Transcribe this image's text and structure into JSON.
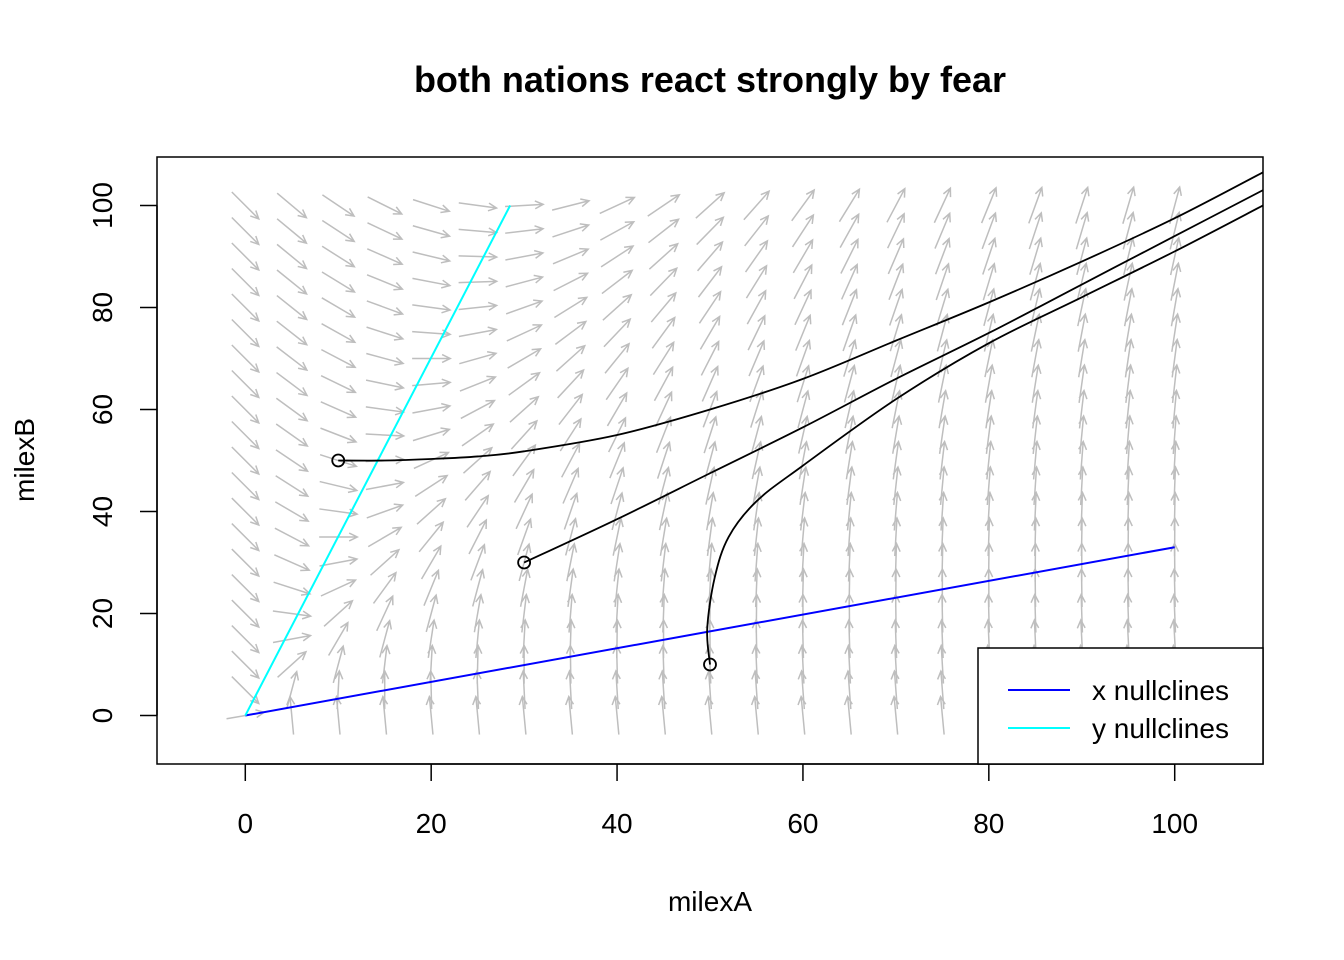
{
  "chart_data": {
    "type": "line",
    "title": "both nations react strongly by fear",
    "xlabel": "milexA",
    "ylabel": "milexB",
    "xlim": [
      -9.5,
      109.5
    ],
    "ylim": [
      -9.5,
      109.5
    ],
    "x_ticks": [
      0,
      20,
      40,
      60,
      80,
      100
    ],
    "y_ticks": [
      0,
      20,
      40,
      60,
      80,
      100
    ],
    "grid": false,
    "legend_position": "bottom-right",
    "colors": {
      "axis": "#000000",
      "vector_field": "#bebebe",
      "x_nullcline": "#0000ff",
      "y_nullcline": "#00ffff",
      "trajectory": "#000000"
    },
    "legend": [
      {
        "label": "x nullclines",
        "color": "#0000ff"
      },
      {
        "label": "y nullclines",
        "color": "#00ffff"
      }
    ],
    "vector_field": {
      "x_range": [
        0,
        100
      ],
      "y_range": [
        0,
        100
      ],
      "grid_points": 21,
      "dx_coeffs": {
        "x": -0.33,
        "y": 1.0,
        "const": 0
      },
      "dy_coeffs": {
        "x": 3.5,
        "y": -1.0,
        "const": 0
      }
    },
    "series": [
      {
        "name": "x nullclines",
        "color": "#0000ff",
        "x": [
          0,
          100
        ],
        "y": [
          0,
          33
        ]
      },
      {
        "name": "y nullclines",
        "color": "#00ffff",
        "x": [
          0,
          28.5
        ],
        "y": [
          0,
          100
        ]
      }
    ],
    "trajectories": [
      {
        "start": [
          10,
          50
        ],
        "x": [
          10,
          15,
          20,
          25,
          30,
          40,
          50,
          60,
          70,
          80,
          90,
          100,
          109.5
        ],
        "y": [
          50,
          50,
          50.3,
          50.8,
          51.8,
          55,
          60,
          66,
          73.5,
          81,
          89,
          97.5,
          106.5
        ]
      },
      {
        "start": [
          30,
          30
        ],
        "x": [
          30,
          40,
          50,
          60,
          70,
          80,
          90,
          100,
          109.5
        ],
        "y": [
          30,
          38.5,
          47.5,
          56.5,
          66,
          75,
          84.5,
          94,
          103
        ]
      },
      {
        "start": [
          50,
          10
        ],
        "x": [
          50,
          49.7,
          50.5,
          52,
          55,
          60,
          70,
          80,
          90,
          100,
          109.5
        ],
        "y": [
          10,
          17,
          27,
          35,
          42,
          49,
          62,
          73,
          82,
          91,
          100
        ]
      }
    ]
  }
}
